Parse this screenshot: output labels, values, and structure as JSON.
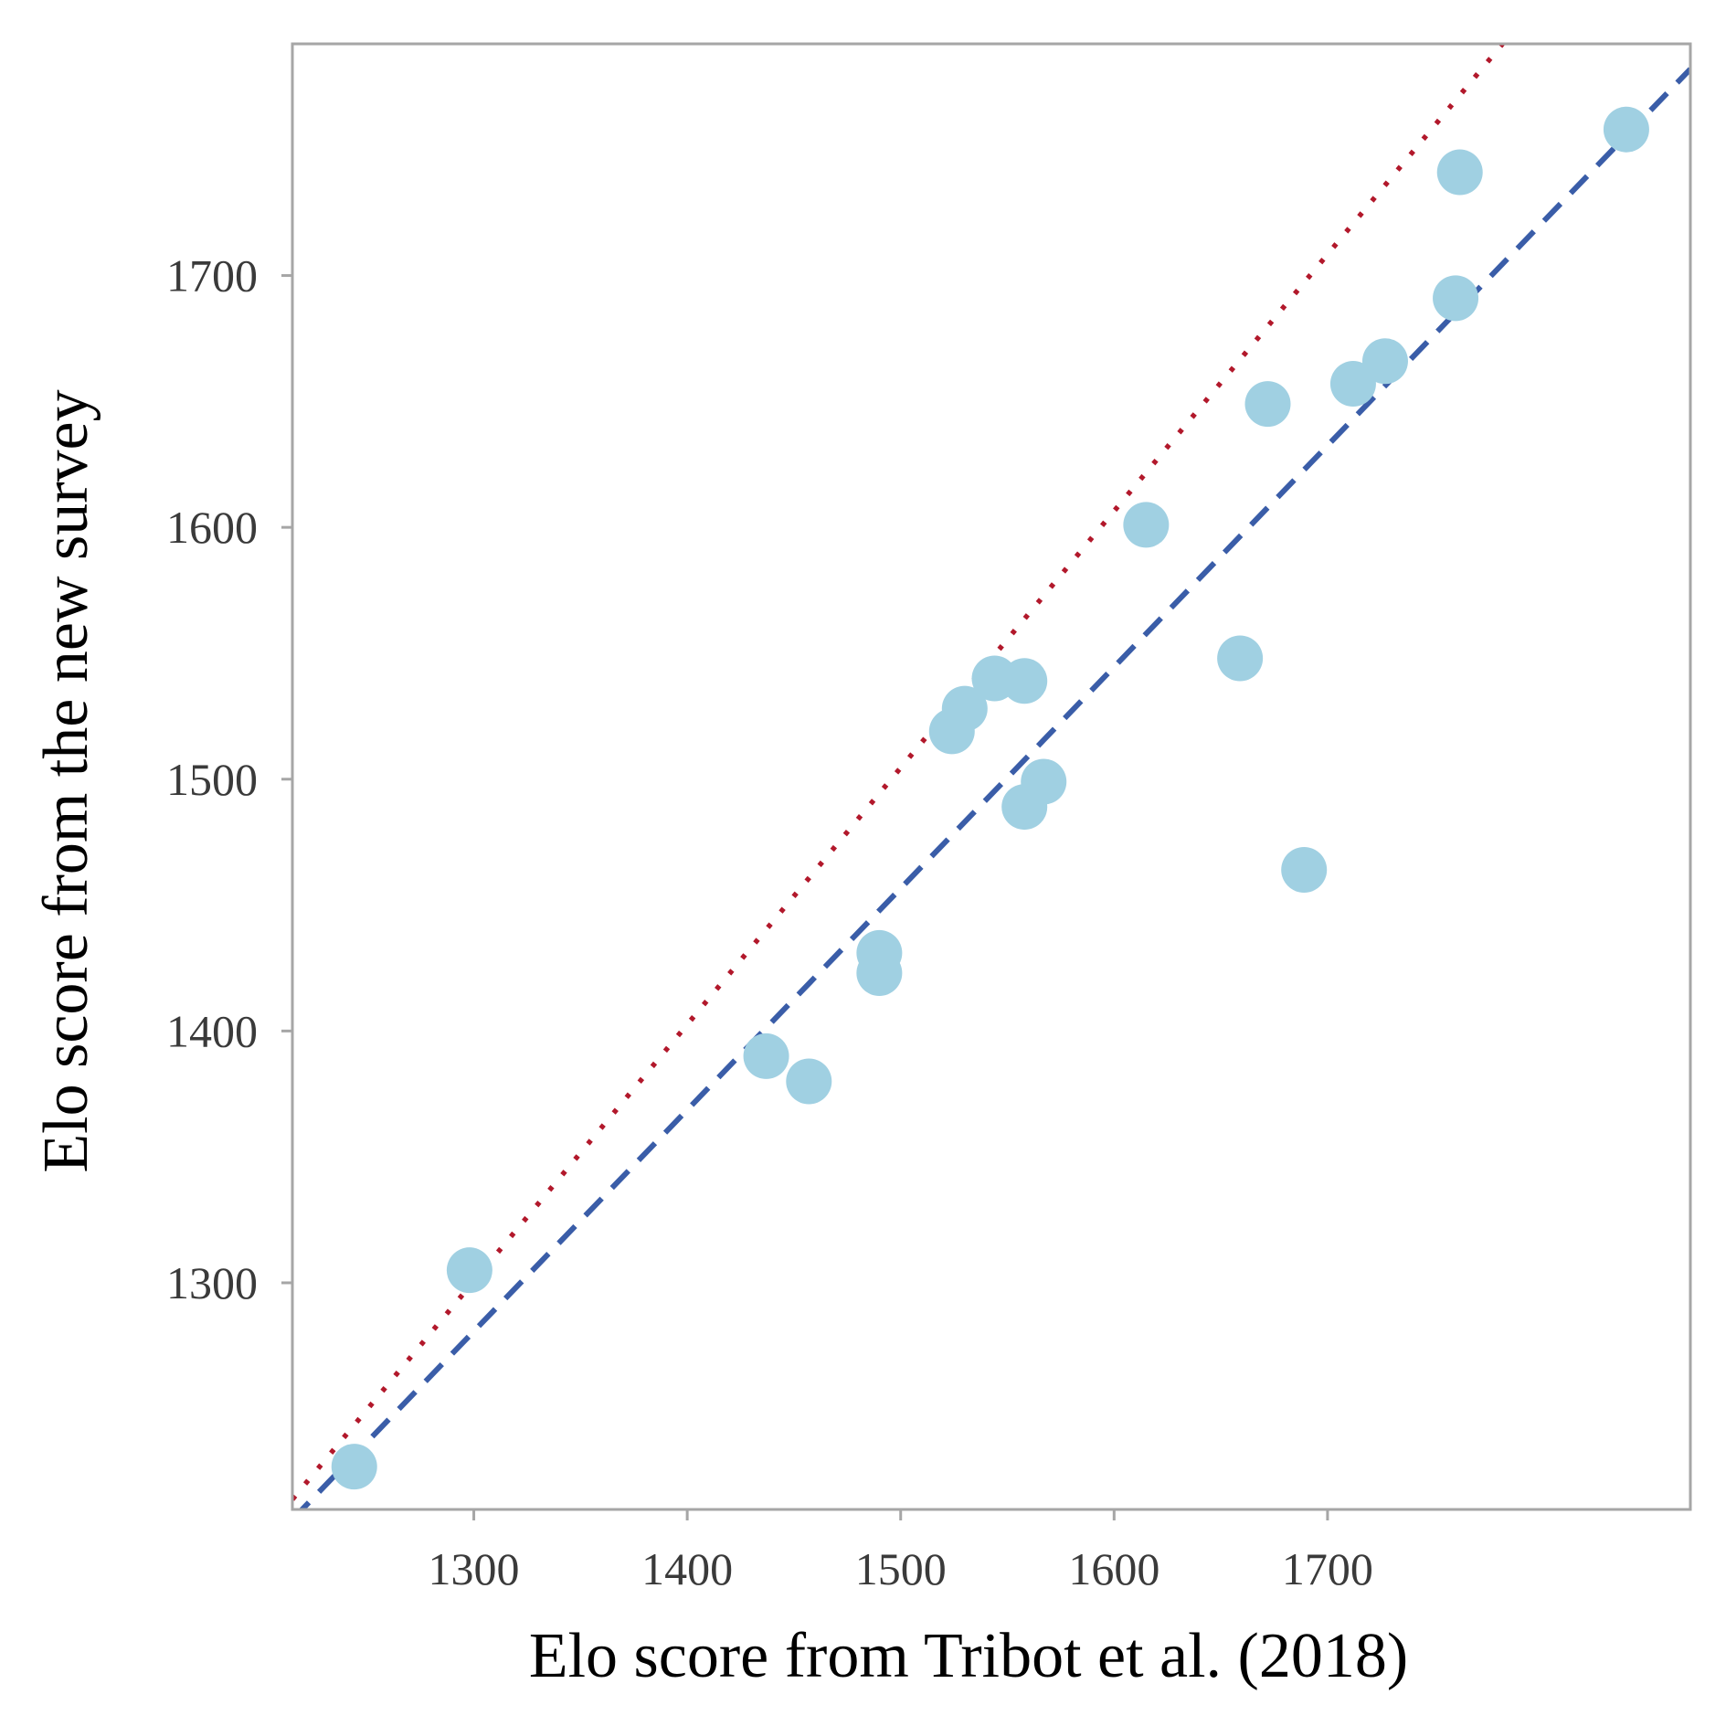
{
  "chart_data": {
    "type": "scatter",
    "title": "",
    "xlabel": "Elo score from Tribot et al. (2018)",
    "ylabel": "Elo score from the new survey",
    "xlim": [
      1215,
      1870
    ],
    "ylim": [
      1210,
      1792
    ],
    "x_ticks": [
      1300,
      1400,
      1500,
      1600,
      1700
    ],
    "y_ticks": [
      1300,
      1400,
      1500,
      1600,
      1700
    ],
    "grid": false,
    "legend": "none",
    "series": [
      {
        "marker_color": "#a0d0e2",
        "points": [
          {
            "x": 1244,
            "y": 1227
          },
          {
            "x": 1298,
            "y": 1305
          },
          {
            "x": 1437,
            "y": 1390
          },
          {
            "x": 1457,
            "y": 1380
          },
          {
            "x": 1490,
            "y": 1431
          },
          {
            "x": 1490,
            "y": 1423
          },
          {
            "x": 1524,
            "y": 1519
          },
          {
            "x": 1530,
            "y": 1528
          },
          {
            "x": 1544,
            "y": 1540
          },
          {
            "x": 1558,
            "y": 1539
          },
          {
            "x": 1558,
            "y": 1489
          },
          {
            "x": 1567,
            "y": 1499
          },
          {
            "x": 1615,
            "y": 1601
          },
          {
            "x": 1659,
            "y": 1548
          },
          {
            "x": 1672,
            "y": 1649
          },
          {
            "x": 1689,
            "y": 1464
          },
          {
            "x": 1712,
            "y": 1657
          },
          {
            "x": 1727,
            "y": 1666
          },
          {
            "x": 1760,
            "y": 1691
          },
          {
            "x": 1762,
            "y": 1741
          },
          {
            "x": 1840,
            "y": 1758
          }
        ]
      }
    ],
    "reference_lines": [
      {
        "style": "dashed",
        "color": "#3a5da8",
        "x": [
          1215,
          1870
        ],
        "y": [
          1206,
          1782
        ]
      },
      {
        "style": "dotted",
        "color": "#b2182b",
        "x": [
          1215,
          1782
        ],
        "y": [
          1214,
          1792
        ]
      }
    ],
    "axis_color": "#a6a6a6"
  }
}
